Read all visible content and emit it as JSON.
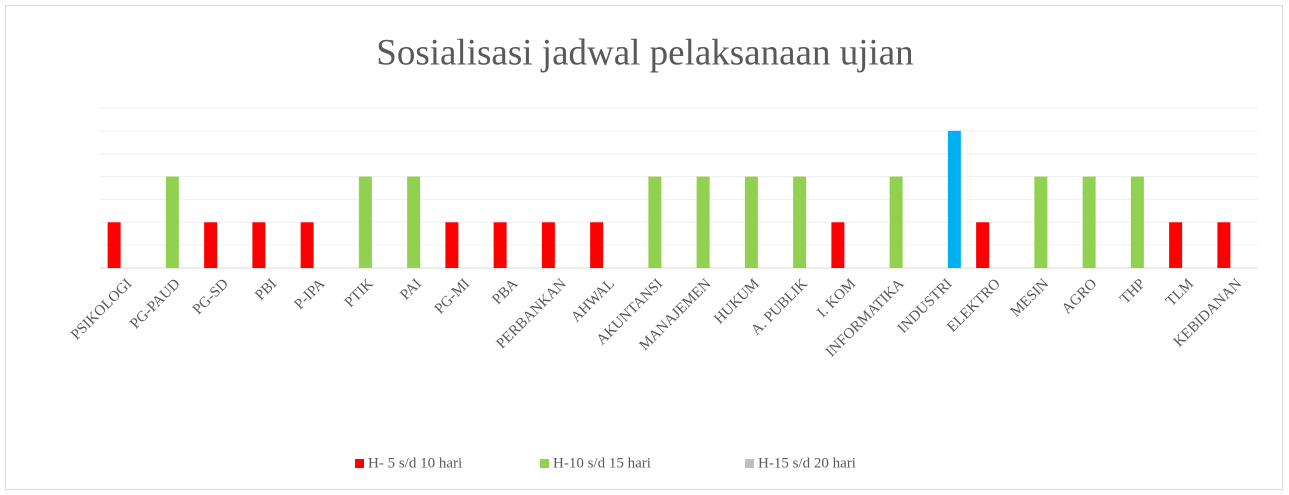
{
  "chart_data": {
    "type": "bar",
    "title": "Sosialisasi  jadwal  pelaksanaan  ujian",
    "categories": [
      "PSIKOLOGI",
      "PG-PAUD",
      "PG-SD",
      "PBI",
      "P-IPA",
      "PTIK",
      "PAI",
      "PG-MI",
      "PBA",
      "PERBANKAN",
      "AHWAL",
      "AKUNTANSI",
      "MANAJEMEN",
      "HUKUM",
      "A. PUBLIK",
      "I. KOM",
      "INFORMATIKA",
      "INDUSTRI",
      "ELEKTRO",
      "MESIN",
      "AGRO",
      "THP",
      "TLM",
      "KEBIDANAN"
    ],
    "series": [
      {
        "name": "H- 5 s/d 10 hari",
        "color": "#ff0000",
        "values": [
          2,
          0,
          2,
          2,
          2,
          0,
          0,
          2,
          2,
          2,
          2,
          0,
          0,
          0,
          0,
          2,
          0,
          0,
          2,
          0,
          0,
          0,
          2,
          2
        ]
      },
      {
        "name": "H-10 s/d 15 hari",
        "color": "#92d050",
        "values": [
          0,
          4,
          0,
          0,
          0,
          4,
          4,
          0,
          0,
          0,
          0,
          4,
          4,
          4,
          4,
          0,
          4,
          0,
          0,
          4,
          4,
          4,
          0,
          0
        ]
      },
      {
        "name": "H-15 s/d 20 hari",
        "color": "#bfbfbf",
        "values": [
          0,
          0,
          0,
          0,
          0,
          0,
          0,
          0,
          0,
          0,
          0,
          0,
          0,
          0,
          0,
          0,
          0,
          6,
          0,
          0,
          0,
          0,
          0,
          0
        ],
        "value_colors": [
          null,
          null,
          null,
          null,
          null,
          null,
          null,
          null,
          null,
          null,
          null,
          null,
          null,
          null,
          null,
          null,
          null,
          "#00b0f0",
          null,
          null,
          null,
          null,
          null,
          null
        ]
      }
    ],
    "ylim": [
      0,
      7
    ],
    "yticks": [
      0,
      1,
      2,
      3,
      4,
      5,
      6,
      7
    ],
    "grid": true,
    "legend": "bottom"
  }
}
